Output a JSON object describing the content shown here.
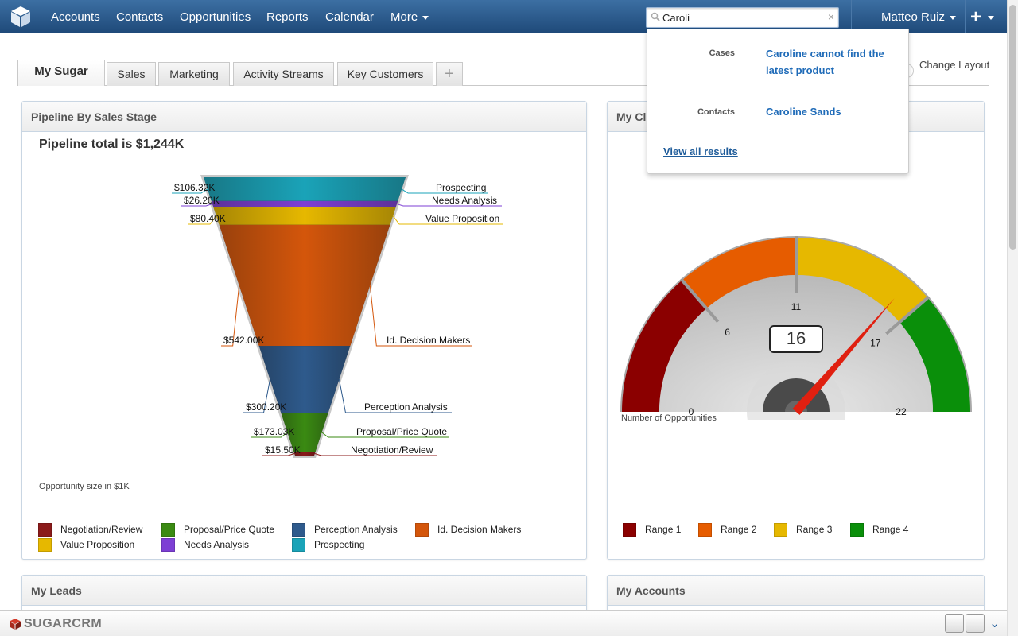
{
  "nav": {
    "items": [
      "Accounts",
      "Contacts",
      "Opportunities",
      "Reports",
      "Calendar",
      "More"
    ],
    "search_value": "Caroli",
    "user": "Matteo Ruiz"
  },
  "tabs": [
    "My Sugar",
    "Sales",
    "Marketing",
    "Activity Streams",
    "Key Customers",
    "+"
  ],
  "change_layout": "Change Layout",
  "search_results": {
    "cases_label": "Cases",
    "case_link": "Caroline cannot find the latest product",
    "contacts_label": "Contacts",
    "contact_link": "Caroline Sands",
    "view_all": "View all results"
  },
  "pipeline": {
    "header": "Pipeline By Sales Stage",
    "footnote": "Opportunity size in $1K"
  },
  "gauge_dashlet": {
    "header": "My Cl",
    "value": "16",
    "footnote": "Number of Opportunities"
  },
  "leads_dashlet": {
    "header": "My Leads"
  },
  "accounts_dashlet": {
    "header": "My Accounts"
  },
  "footer": {
    "brand": "SUGARCRM"
  },
  "chart_data": [
    {
      "type": "funnel",
      "title": "Pipeline total is $1,244K",
      "categories": [
        "Prospecting",
        "Needs Analysis",
        "Value Proposition",
        "Id. Decision Makers",
        "Perception Analysis",
        "Proposal/Price Quote",
        "Negotiation/Review"
      ],
      "values": [
        106.32,
        26.2,
        80.4,
        542.0,
        300.2,
        173.03,
        15.5
      ],
      "value_labels": [
        "$106.32K",
        "$26.20K",
        "$80.40K",
        "$542.00K",
        "$300.20K",
        "$173.03K",
        "$15.50K"
      ],
      "colors": [
        "#1aa3b8",
        "#7d3fd4",
        "#e6b800",
        "#d4560b",
        "#2e5a8c",
        "#3a8a12",
        "#8b1a1a"
      ],
      "legend": [
        {
          "name": "Negotiation/Review",
          "color": "#8b1a1a"
        },
        {
          "name": "Proposal/Price Quote",
          "color": "#3a8a12"
        },
        {
          "name": "Perception Analysis",
          "color": "#2e5a8c"
        },
        {
          "name": "Id. Decision Makers",
          "color": "#d4560b"
        },
        {
          "name": "Value Proposition",
          "color": "#e6b800"
        },
        {
          "name": "Needs Analysis",
          "color": "#7d3fd4"
        },
        {
          "name": "Prospecting",
          "color": "#1aa3b8"
        }
      ]
    },
    {
      "type": "gauge",
      "value": 16,
      "min": 0,
      "max": 22,
      "ticks": [
        0,
        6,
        11,
        17,
        22
      ],
      "ranges": [
        {
          "name": "Range 1",
          "from": 0,
          "to": 6,
          "color": "#8b0000"
        },
        {
          "name": "Range 2",
          "from": 6,
          "to": 11,
          "color": "#e65c00"
        },
        {
          "name": "Range 3",
          "from": 11,
          "to": 17,
          "color": "#e6b800"
        },
        {
          "name": "Range 4",
          "from": 17,
          "to": 22,
          "color": "#0a8f0a"
        }
      ]
    }
  ]
}
